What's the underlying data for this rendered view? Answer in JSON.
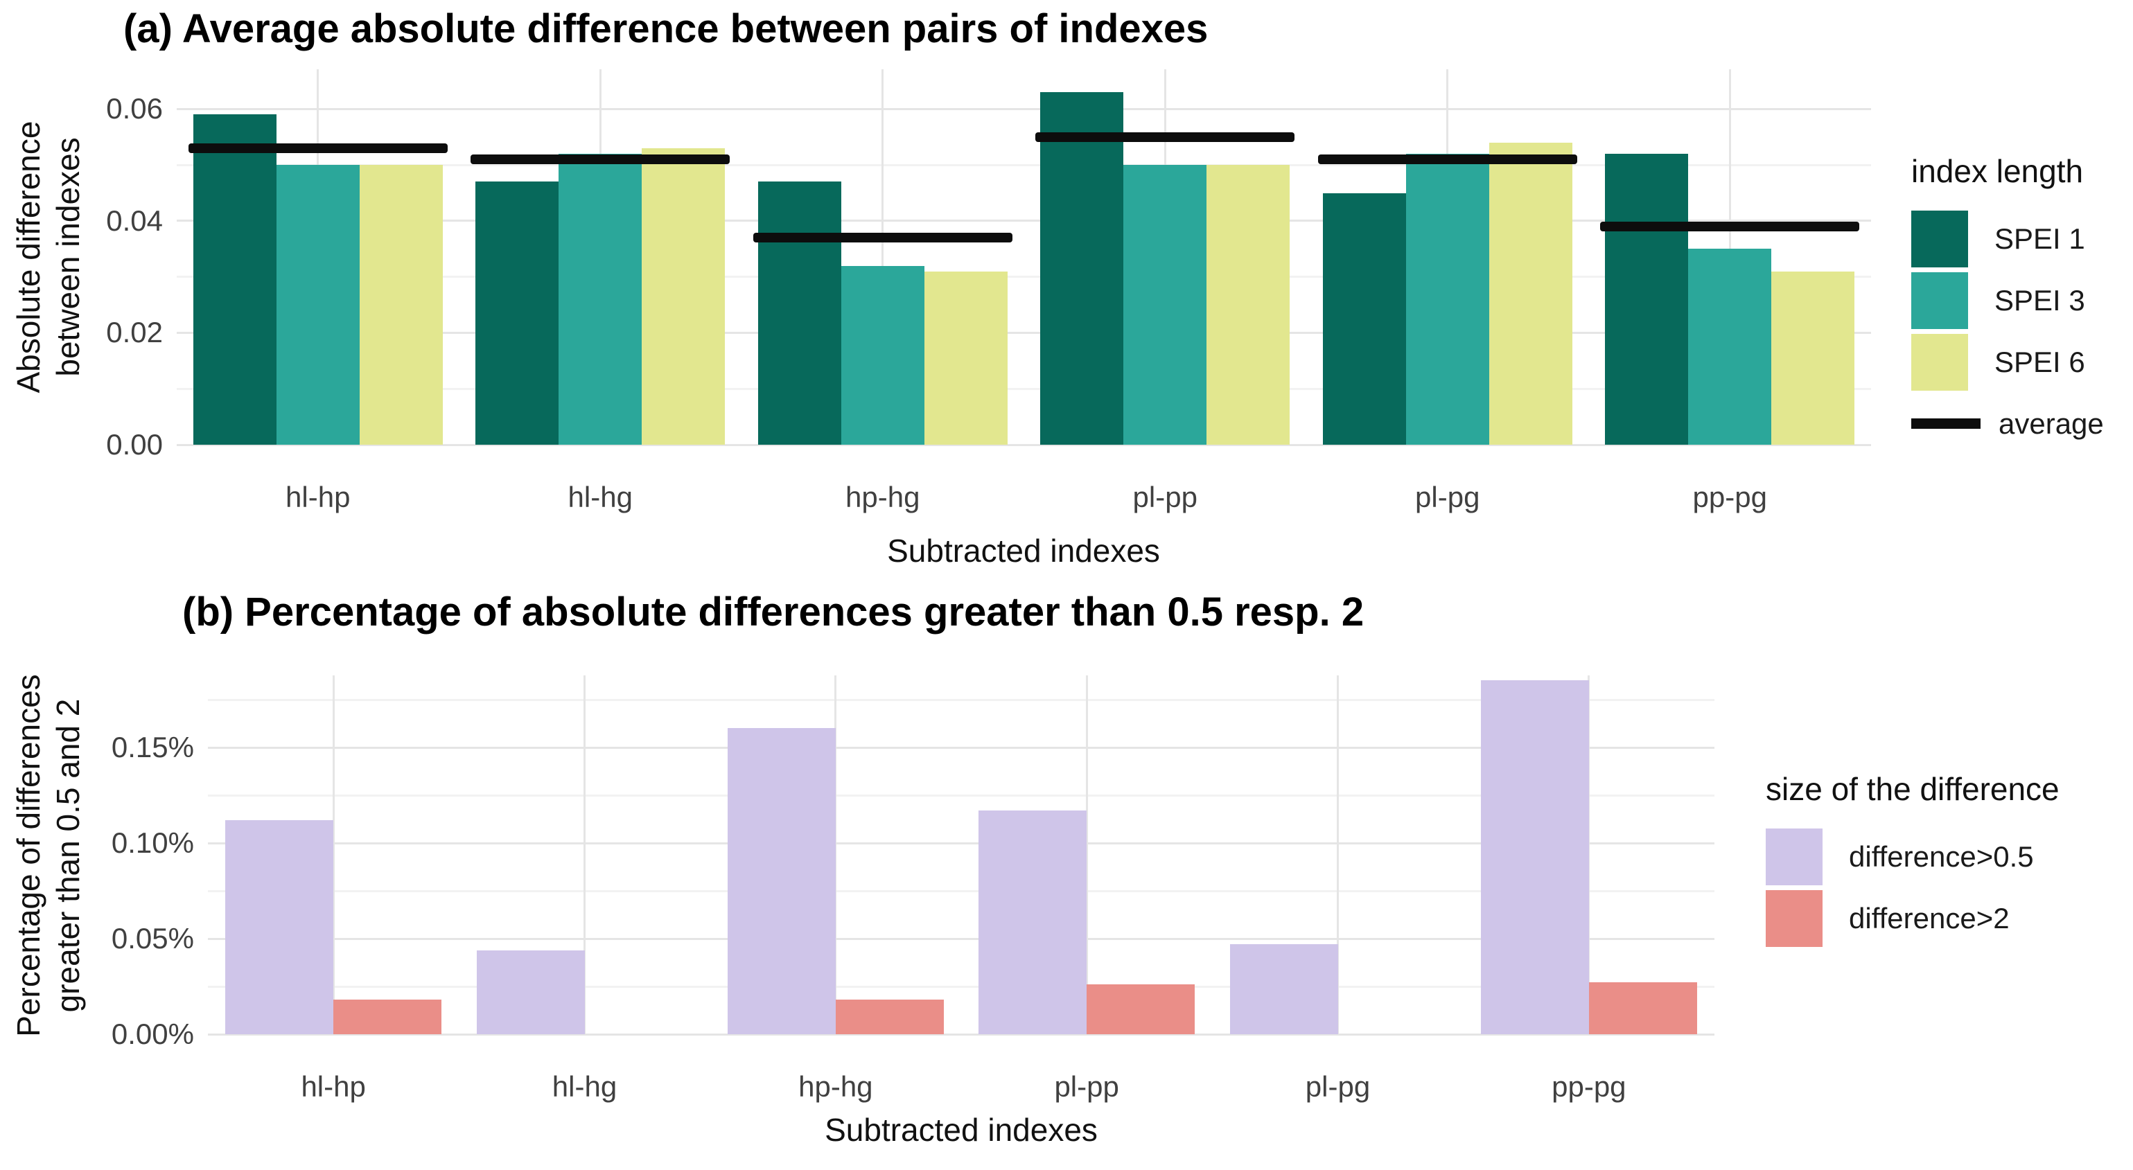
{
  "style": {
    "background": "#ffffff",
    "grid_major": "#e5e5e5",
    "grid_minor": "#f2f2f2",
    "tick_label_color": "#404040",
    "text_color": "#111111",
    "title_color": "#000000"
  },
  "chart_data": [
    {
      "id": "a",
      "type": "bar",
      "title": "(a) Average absolute difference between pairs of indexes",
      "xlabel": "Subtracted indexes",
      "ylabel": "Absolute difference between indexes",
      "ylabel_lines": [
        "Absolute difference",
        "between indexes"
      ],
      "legend_title": "index length",
      "legend_position": "right",
      "grid": true,
      "categories": [
        "hl-hp",
        "hl-hg",
        "hp-hg",
        "pl-pp",
        "pl-pg",
        "pp-pg"
      ],
      "series": [
        {
          "name": "SPEI 1",
          "color": "#07695b",
          "values": [
            0.059,
            0.047,
            0.047,
            0.063,
            0.045,
            0.052
          ]
        },
        {
          "name": "SPEI 3",
          "color": "#2ba79a",
          "values": [
            0.05,
            0.052,
            0.032,
            0.05,
            0.052,
            0.035
          ]
        },
        {
          "name": "SPEI 6",
          "color": "#e2e78f",
          "values": [
            0.05,
            0.053,
            0.031,
            0.05,
            0.054,
            0.031
          ]
        }
      ],
      "average": {
        "label": "average",
        "color": "#0d0d0d",
        "values": [
          0.053,
          0.051,
          0.037,
          0.055,
          0.051,
          0.039
        ]
      },
      "yticks": [
        0,
        0.02,
        0.04,
        0.06
      ],
      "ytick_labels": [
        "0.00",
        "0.02",
        "0.04",
        "0.06"
      ],
      "ylim": [
        0,
        0.0671
      ]
    },
    {
      "id": "b",
      "type": "bar",
      "title": "(b) Percentage of absolute differences greater than 0.5 resp. 2",
      "xlabel": "Subtracted indexes",
      "ylabel": "Percentage of differences greater than 0.5 and 2",
      "ylabel_lines": [
        "Percentage of differences",
        "greater than 0.5 and 2"
      ],
      "legend_title": "size of the difference",
      "legend_position": "right",
      "grid": true,
      "unit": "%",
      "categories": [
        "hl-hp",
        "hl-hg",
        "hp-hg",
        "pl-pp",
        "pl-pg",
        "pp-pg"
      ],
      "series": [
        {
          "name": "difference>0.5",
          "color": "#cfc5e9",
          "values": [
            0.112,
            0.044,
            0.16,
            0.117,
            0.047,
            0.185
          ]
        },
        {
          "name": "difference>2",
          "color": "#ea8e88",
          "values": [
            0.018,
            0,
            0.018,
            0.026,
            0,
            0.027
          ]
        }
      ],
      "average": null,
      "yticks": [
        0,
        0.05,
        0.1,
        0.15
      ],
      "ytick_labels": [
        "0.00%",
        "0.05%",
        "0.10%",
        "0.15%"
      ],
      "ylim": [
        0,
        0.1877
      ]
    }
  ]
}
